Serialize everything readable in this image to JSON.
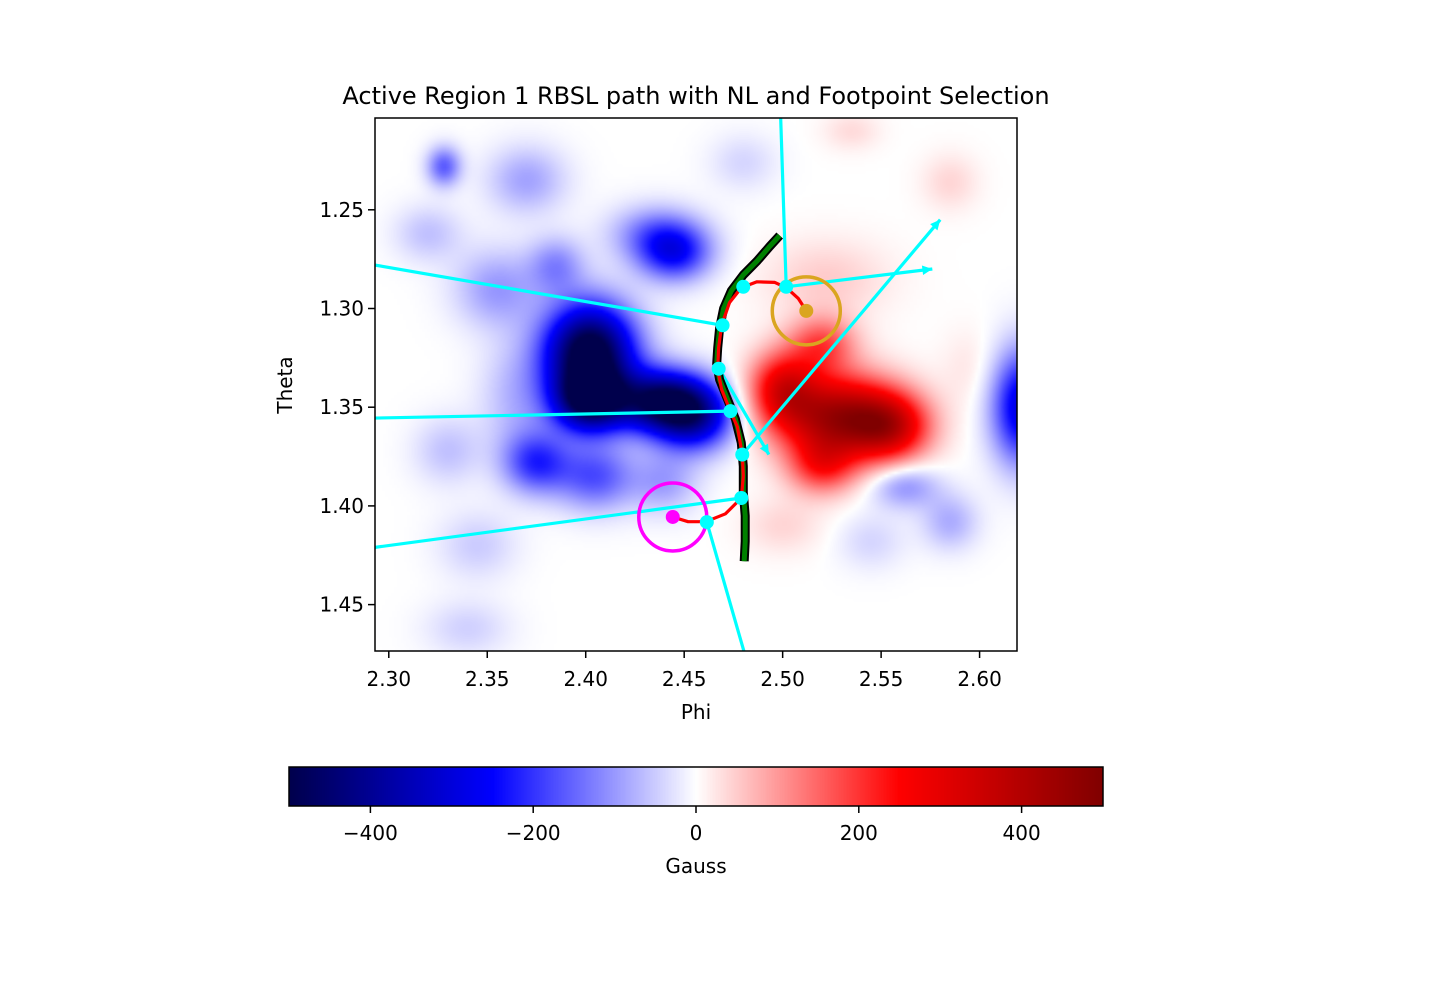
{
  "chart_data": [
    {
      "type": "heatmap",
      "title": "Active Region 1 RBSL path with NL and Footpoint Selection",
      "xlabel": "Phi",
      "ylabel": "Theta",
      "xlim": [
        2.293,
        2.619
      ],
      "ylim": [
        1.4735,
        1.2035
      ],
      "y_inverted": true,
      "xticks": [
        2.3,
        2.35,
        2.4,
        2.45,
        2.5,
        2.55,
        2.6
      ],
      "xtick_labels": [
        "2.30",
        "2.35",
        "2.40",
        "2.45",
        "2.50",
        "2.55",
        "2.60"
      ],
      "yticks": [
        1.25,
        1.3,
        1.35,
        1.4,
        1.45
      ],
      "ytick_labels": [
        "1.25",
        "1.30",
        "1.35",
        "1.40",
        "1.45"
      ],
      "colormap": "seismic",
      "clim": [
        -500,
        500
      ],
      "field_blobs": [
        {
          "phi": 2.402,
          "theta": 1.322,
          "value": -560,
          "sphi": 0.016,
          "stheta": 0.017
        },
        {
          "phi": 2.402,
          "theta": 1.347,
          "value": -440,
          "sphi": 0.013,
          "stheta": 0.011
        },
        {
          "phi": 2.438,
          "theta": 1.347,
          "value": -440,
          "sphi": 0.016,
          "stheta": 0.011
        },
        {
          "phi": 2.455,
          "theta": 1.355,
          "value": -320,
          "sphi": 0.014,
          "stheta": 0.012
        },
        {
          "phi": 2.445,
          "theta": 1.272,
          "value": -230,
          "sphi": 0.013,
          "stheta": 0.01
        },
        {
          "phi": 2.435,
          "theta": 1.262,
          "value": -120,
          "sphi": 0.016,
          "stheta": 0.01
        },
        {
          "phi": 2.328,
          "theta": 1.228,
          "value": -160,
          "sphi": 0.006,
          "stheta": 0.007
        },
        {
          "phi": 2.37,
          "theta": 1.235,
          "value": -90,
          "sphi": 0.014,
          "stheta": 0.012
        },
        {
          "phi": 2.32,
          "theta": 1.262,
          "value": -60,
          "sphi": 0.012,
          "stheta": 0.01
        },
        {
          "phi": 2.355,
          "theta": 1.29,
          "value": -100,
          "sphi": 0.015,
          "stheta": 0.014
        },
        {
          "phi": 2.385,
          "theta": 1.278,
          "value": -110,
          "sphi": 0.01,
          "stheta": 0.01
        },
        {
          "phi": 2.365,
          "theta": 1.345,
          "value": -70,
          "sphi": 0.013,
          "stheta": 0.02
        },
        {
          "phi": 2.375,
          "theta": 1.378,
          "value": -200,
          "sphi": 0.012,
          "stheta": 0.011
        },
        {
          "phi": 2.405,
          "theta": 1.385,
          "value": -170,
          "sphi": 0.014,
          "stheta": 0.012
        },
        {
          "phi": 2.44,
          "theta": 1.388,
          "value": -90,
          "sphi": 0.012,
          "stheta": 0.011
        },
        {
          "phi": 2.33,
          "theta": 1.372,
          "value": -60,
          "sphi": 0.012,
          "stheta": 0.012
        },
        {
          "phi": 2.345,
          "theta": 1.42,
          "value": -50,
          "sphi": 0.014,
          "stheta": 0.012
        },
        {
          "phi": 2.34,
          "theta": 1.462,
          "value": -45,
          "sphi": 0.015,
          "stheta": 0.01
        },
        {
          "phi": 2.48,
          "theta": 1.226,
          "value": -40,
          "sphi": 0.012,
          "stheta": 0.01
        },
        {
          "phi": 2.562,
          "theta": 1.39,
          "value": -110,
          "sphi": 0.012,
          "stheta": 0.008
        },
        {
          "phi": 2.585,
          "theta": 1.408,
          "value": -80,
          "sphi": 0.01,
          "stheta": 0.01
        },
        {
          "phi": 2.545,
          "theta": 1.418,
          "value": -40,
          "sphi": 0.012,
          "stheta": 0.01
        },
        {
          "phi": 2.622,
          "theta": 1.35,
          "value": -300,
          "sphi": 0.011,
          "stheta": 0.02
        },
        {
          "phi": 2.528,
          "theta": 1.355,
          "value": 420,
          "sphi": 0.021,
          "stheta": 0.015
        },
        {
          "phi": 2.555,
          "theta": 1.36,
          "value": 280,
          "sphi": 0.014,
          "stheta": 0.012
        },
        {
          "phi": 2.5,
          "theta": 1.34,
          "value": 260,
          "sphi": 0.012,
          "stheta": 0.013
        },
        {
          "phi": 2.52,
          "theta": 1.318,
          "value": 170,
          "sphi": 0.012,
          "stheta": 0.01
        },
        {
          "phi": 2.52,
          "theta": 1.38,
          "value": 180,
          "sphi": 0.012,
          "stheta": 0.01
        },
        {
          "phi": 2.522,
          "theta": 1.285,
          "value": 50,
          "sphi": 0.022,
          "stheta": 0.014
        },
        {
          "phi": 2.585,
          "theta": 1.236,
          "value": 40,
          "sphi": 0.01,
          "stheta": 0.01
        },
        {
          "phi": 2.535,
          "theta": 1.21,
          "value": 35,
          "sphi": 0.01,
          "stheta": 0.007
        },
        {
          "phi": 2.5,
          "theta": 1.41,
          "value": 40,
          "sphi": 0.014,
          "stheta": 0.01
        },
        {
          "phi": 2.595,
          "theta": 1.33,
          "value": 25,
          "sphi": 0.01,
          "stheta": 0.014
        }
      ],
      "neutral_line": [
        [
          2.4985,
          1.263
        ],
        [
          2.4935,
          1.2685
        ],
        [
          2.487,
          1.276
        ],
        [
          2.48,
          1.283
        ],
        [
          2.474,
          1.291
        ],
        [
          2.47,
          1.3
        ],
        [
          2.468,
          1.31
        ],
        [
          2.467,
          1.32
        ],
        [
          2.4665,
          1.328
        ],
        [
          2.468,
          1.336
        ],
        [
          2.472,
          1.346
        ],
        [
          2.476,
          1.356
        ],
        [
          2.479,
          1.368
        ],
        [
          2.48,
          1.38
        ],
        [
          2.48,
          1.393
        ],
        [
          2.481,
          1.405
        ],
        [
          2.481,
          1.418
        ],
        [
          2.4805,
          1.428
        ]
      ],
      "rbsl_path": [
        [
          2.4442,
          1.4056
        ],
        [
          2.452,
          1.408
        ],
        [
          2.461,
          1.408
        ],
        [
          2.471,
          1.404
        ],
        [
          2.479,
          1.396
        ],
        [
          2.48,
          1.385
        ],
        [
          2.4795,
          1.374
        ],
        [
          2.477,
          1.36
        ],
        [
          2.473,
          1.351
        ],
        [
          2.469,
          1.341
        ],
        [
          2.467,
          1.331
        ],
        [
          2.4675,
          1.32
        ],
        [
          2.469,
          1.3085
        ],
        [
          2.473,
          1.297
        ],
        [
          2.479,
          1.2895
        ],
        [
          2.487,
          1.2865
        ],
        [
          2.496,
          1.2868
        ],
        [
          2.502,
          1.2895
        ],
        [
          2.508,
          1.295
        ],
        [
          2.512,
          1.3012
        ]
      ],
      "cyan_rays": [
        [
          [
            2.499,
            1.2035
          ],
          [
            2.5018,
            1.289
          ]
        ],
        [
          [
            2.293,
            1.278
          ],
          [
            2.4695,
            1.3085
          ]
        ],
        [
          [
            2.293,
            1.3555
          ],
          [
            2.4735,
            1.352
          ]
        ],
        [
          [
            2.293,
            1.421
          ],
          [
            2.479,
            1.396
          ]
        ],
        [
          [
            2.4615,
            1.4082
          ],
          [
            2.4803,
            1.4735
          ]
        ]
      ],
      "cyan_arrows": [
        [
          [
            2.5018,
            1.289
          ],
          [
            2.576,
            1.28
          ]
        ],
        [
          [
            2.4795,
            1.374
          ],
          [
            2.58,
            1.255
          ]
        ],
        [
          [
            2.468,
            1.331
          ],
          [
            2.493,
            1.374
          ]
        ]
      ],
      "cyan_points": [
        [
          2.48,
          1.289
        ],
        [
          2.5018,
          1.289
        ],
        [
          2.4695,
          1.3085
        ],
        [
          2.4675,
          1.3305
        ],
        [
          2.4735,
          1.352
        ],
        [
          2.4795,
          1.374
        ],
        [
          2.479,
          1.396
        ],
        [
          2.4615,
          1.4082
        ]
      ],
      "footpoints": [
        {
          "phi": 2.512,
          "theta": 1.3012,
          "color": "#daa520"
        },
        {
          "phi": 2.4442,
          "theta": 1.4056,
          "color": "#ff00ff"
        }
      ],
      "neutral_line_colors": {
        "outer": "#000000",
        "inner": "#008000"
      },
      "rbsl_color": "#ff0000",
      "ray_color": "#00ffff"
    },
    {
      "type": "colorbar",
      "label": "Gauss",
      "range": [
        -500,
        500
      ],
      "ticks": [
        -400,
        -200,
        0,
        200,
        400
      ],
      "tick_labels": [
        "−400",
        "−200",
        "0",
        "200",
        "400"
      ],
      "colormap": "seismic"
    }
  ]
}
